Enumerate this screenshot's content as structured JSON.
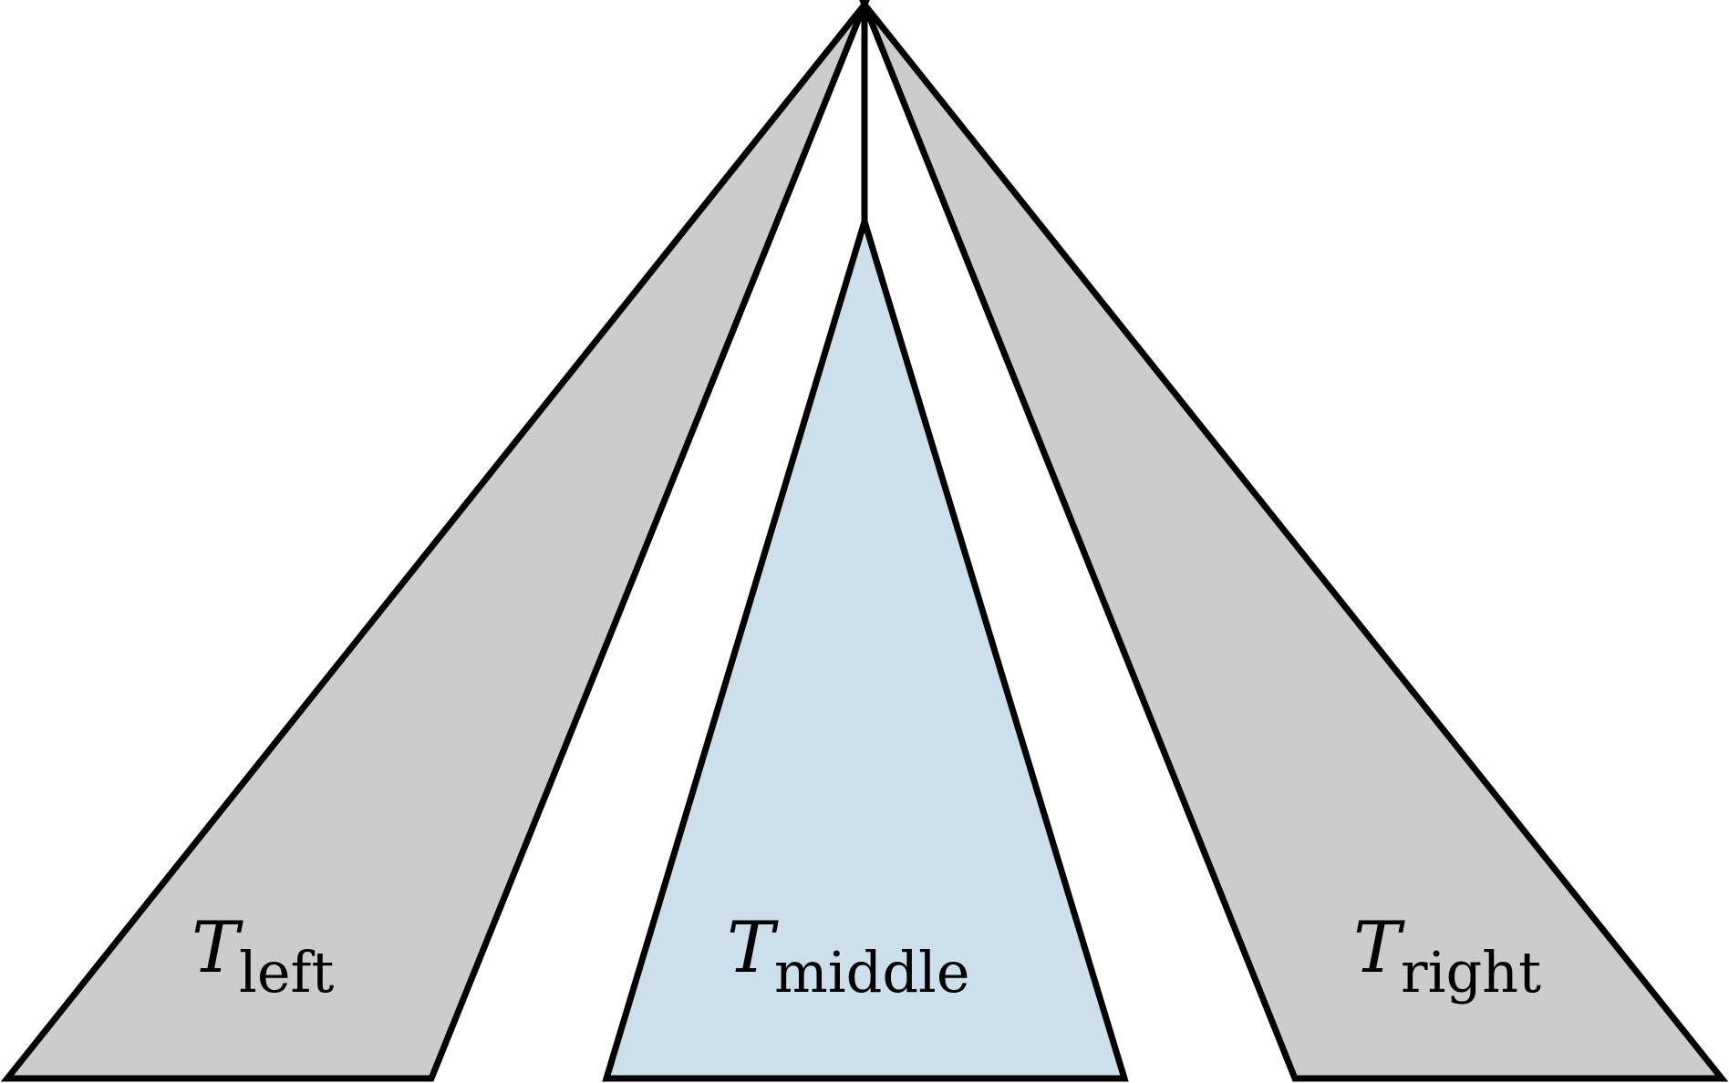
{
  "diagram": {
    "subtrees": [
      {
        "id": "left",
        "symbol": "T",
        "subscript": "left",
        "fill": "#cccccc"
      },
      {
        "id": "middle",
        "symbol": "T",
        "subscript": "middle",
        "fill": "#cce0ec"
      },
      {
        "id": "right",
        "symbol": "T",
        "subscript": "right",
        "fill": "#cccccc"
      }
    ],
    "stroke": "#000000"
  }
}
